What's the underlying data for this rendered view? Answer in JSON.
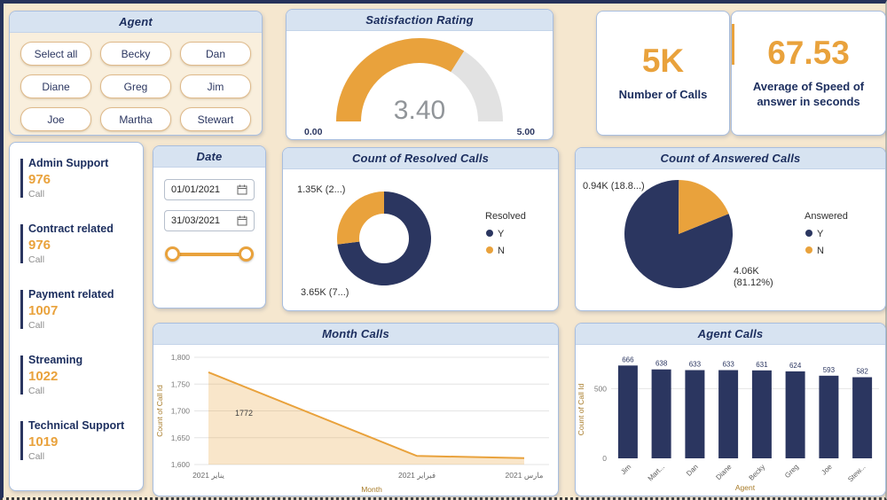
{
  "colors": {
    "navy": "#2b3660",
    "orange": "#e9a23c",
    "title_navy": "#1c2e5e",
    "background": "#f5e7cf",
    "header_blue": "#d7e3f1",
    "value_grey": "#919599"
  },
  "agent_slicer": {
    "title": "Agent",
    "buttons": [
      "Select all",
      "Becky",
      "Dan",
      "Diane",
      "Greg",
      "Jim",
      "Joe",
      "Martha",
      "Stewart"
    ]
  },
  "kpis": [
    {
      "value": "5K",
      "label": "Number of Calls"
    },
    {
      "value": "67.53",
      "label": "Average of Speed of answer in seconds"
    }
  ],
  "topics": [
    {
      "name": "Admin Support",
      "value": "976",
      "unit": "Call"
    },
    {
      "name": "Contract related",
      "value": "976",
      "unit": "Call"
    },
    {
      "name": "Payment related",
      "value": "1007",
      "unit": "Call"
    },
    {
      "name": "Streaming",
      "value": "1022",
      "unit": "Call"
    },
    {
      "name": "Technical Support",
      "value": "1019",
      "unit": "Call"
    }
  ],
  "date_slicer": {
    "title": "Date",
    "start": "01/01/2021",
    "end": "31/03/2021"
  },
  "chart_data": [
    {
      "type": "gauge",
      "title": "Satisfaction Rating",
      "value": 3.4,
      "min": 0,
      "max": 5,
      "value_label": "3.40",
      "min_label": "0.00",
      "max_label": "5.00"
    },
    {
      "type": "pie",
      "variant": "donut",
      "title": "Count of Resolved Calls",
      "legend_title": "Resolved",
      "legend_position": "right",
      "slices": [
        {
          "label": "Y",
          "value": 3650,
          "color": "#2b3660",
          "callout": "3.65K (7...)"
        },
        {
          "label": "N",
          "value": 1350,
          "color": "#e9a23c",
          "callout": "1.35K (2...)"
        }
      ]
    },
    {
      "type": "pie",
      "title": "Count of Answered Calls",
      "legend_title": "Answered",
      "legend_position": "right",
      "slices": [
        {
          "label": "Y",
          "value": 4060,
          "color": "#2b3660",
          "callout": "4.06K\n(81.12%)"
        },
        {
          "label": "N",
          "value": 940,
          "color": "#e9a23c",
          "callout": "0.94K (18.8...)"
        }
      ]
    },
    {
      "type": "area",
      "title": "Month Calls",
      "xlabel": "Month",
      "ylabel": "Count of Call Id",
      "categories": [
        "يناير 2021",
        "فبراير 2021",
        "مارس 2021"
      ],
      "values": [
        1772,
        1616,
        1612
      ],
      "ylim": [
        1600,
        1800
      ],
      "ytick_step": 50,
      "ytick_labels": [
        "1,600",
        "1,650",
        "1,700",
        "1,750",
        "1,800"
      ],
      "point_label": "1772",
      "line_color": "#e9a23c"
    },
    {
      "type": "bar",
      "title": "Agent Calls",
      "xlabel": "Agent",
      "ylabel": "Count of Call Id",
      "categories": [
        "Jim",
        "Mart...",
        "Dan",
        "Diane",
        "Becky",
        "Greg",
        "Joe",
        "Stew..."
      ],
      "values": [
        666,
        638,
        633,
        633,
        631,
        624,
        593,
        582
      ],
      "ylim": [
        0,
        700
      ],
      "ytick_values": [
        0,
        500
      ],
      "ytick_labels": [
        "0",
        "500"
      ],
      "bar_color": "#2b3660"
    }
  ]
}
